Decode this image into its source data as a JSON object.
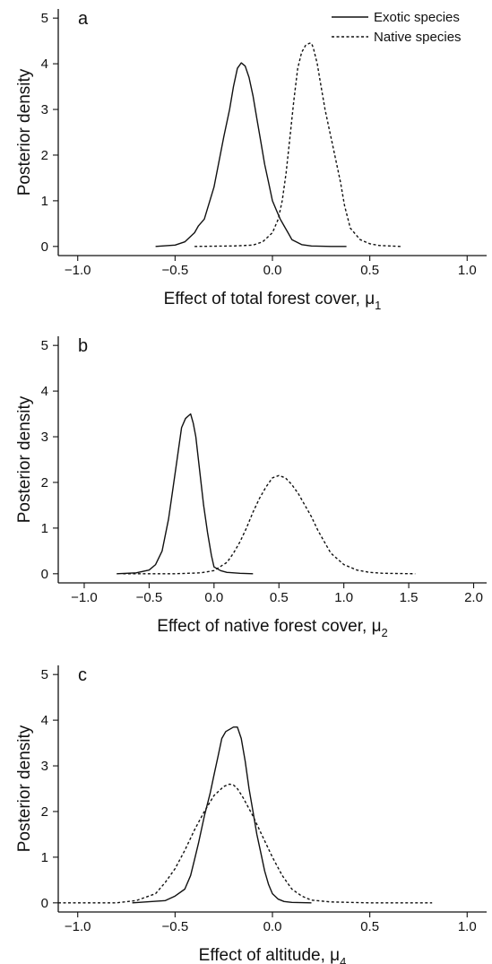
{
  "legend": [
    {
      "name": "Exotic species",
      "dash": "solid"
    },
    {
      "name": "Native species",
      "dash": "dashed"
    }
  ],
  "chart_data": [
    {
      "type": "line",
      "panel_label": "a",
      "xlabel": "Effect of total forest cover, μ",
      "xlabel_sub": "1",
      "ylabel": "Posterior density",
      "xlim": [
        -1.1,
        1.1
      ],
      "ylim": [
        -0.2,
        5.2
      ],
      "xticks": [
        -1.0,
        -0.5,
        0.0,
        0.5,
        1.0
      ],
      "xtick_labels": [
        "−1.0",
        "−0.5",
        "0.0",
        "0.5",
        "1.0"
      ],
      "yticks": [
        0,
        1,
        2,
        3,
        4,
        5
      ],
      "ytick_labels": [
        "0",
        "1",
        "2",
        "3",
        "4",
        "5"
      ],
      "legend_position": "top-right",
      "series": [
        {
          "name": "Exotic species",
          "dash": "solid",
          "x": [
            -0.6,
            -0.5,
            -0.45,
            -0.4,
            -0.38,
            -0.35,
            -0.3,
            -0.25,
            -0.22,
            -0.2,
            -0.18,
            -0.16,
            -0.14,
            -0.12,
            -0.1,
            -0.08,
            -0.06,
            -0.04,
            -0.02,
            0.0,
            0.02,
            0.04,
            0.06,
            0.08,
            0.1,
            0.15,
            0.2,
            0.3,
            0.38
          ],
          "y": [
            0.0,
            0.03,
            0.1,
            0.3,
            0.45,
            0.6,
            1.3,
            2.4,
            3.0,
            3.5,
            3.9,
            4.02,
            3.95,
            3.7,
            3.3,
            2.8,
            2.3,
            1.8,
            1.4,
            1.0,
            0.8,
            0.6,
            0.45,
            0.3,
            0.15,
            0.04,
            0.01,
            0.0,
            0.0
          ]
        },
        {
          "name": "Native species",
          "dash": "dashed",
          "x": [
            -0.4,
            -0.2,
            -0.1,
            -0.05,
            0.0,
            0.03,
            0.05,
            0.07,
            0.09,
            0.11,
            0.13,
            0.15,
            0.17,
            0.19,
            0.2,
            0.21,
            0.23,
            0.25,
            0.27,
            0.29,
            0.31,
            0.33,
            0.35,
            0.37,
            0.4,
            0.45,
            0.5,
            0.55,
            0.66
          ],
          "y": [
            0.0,
            0.01,
            0.03,
            0.1,
            0.3,
            0.6,
            1.0,
            1.6,
            2.4,
            3.2,
            3.9,
            4.25,
            4.4,
            4.45,
            4.45,
            4.35,
            4.0,
            3.5,
            3.0,
            2.6,
            2.2,
            1.8,
            1.4,
            0.9,
            0.4,
            0.15,
            0.06,
            0.02,
            0.0
          ]
        }
      ]
    },
    {
      "type": "line",
      "panel_label": "b",
      "xlabel": "Effect of native forest cover, μ",
      "xlabel_sub": "2",
      "ylabel": "Posterior density",
      "xlim": [
        -1.2,
        2.1
      ],
      "ylim": [
        -0.2,
        5.2
      ],
      "xticks": [
        -1.0,
        -0.5,
        0.0,
        0.5,
        1.0,
        1.5,
        2.0
      ],
      "xtick_labels": [
        "−1.0",
        "−0.5",
        "0.0",
        "0.5",
        "1.0",
        "1.5",
        "2.0"
      ],
      "yticks": [
        0,
        1,
        2,
        3,
        4,
        5
      ],
      "ytick_labels": [
        "0",
        "1",
        "2",
        "3",
        "4",
        "5"
      ],
      "series": [
        {
          "name": "Exotic species",
          "dash": "solid",
          "x": [
            -0.75,
            -0.6,
            -0.5,
            -0.45,
            -0.4,
            -0.35,
            -0.32,
            -0.28,
            -0.25,
            -0.22,
            -0.2,
            -0.18,
            -0.16,
            -0.14,
            -0.12,
            -0.1,
            -0.08,
            -0.05,
            -0.02,
            0.0,
            0.05,
            0.1,
            0.2,
            0.3
          ],
          "y": [
            0.0,
            0.02,
            0.08,
            0.2,
            0.5,
            1.2,
            1.8,
            2.6,
            3.2,
            3.4,
            3.45,
            3.5,
            3.3,
            3.0,
            2.5,
            2.0,
            1.5,
            0.9,
            0.4,
            0.15,
            0.07,
            0.03,
            0.01,
            0.0
          ]
        },
        {
          "name": "Native species",
          "dash": "dashed",
          "x": [
            -0.7,
            -0.3,
            -0.1,
            0.0,
            0.1,
            0.15,
            0.2,
            0.25,
            0.3,
            0.35,
            0.4,
            0.45,
            0.5,
            0.55,
            0.6,
            0.65,
            0.7,
            0.75,
            0.8,
            0.85,
            0.9,
            1.0,
            1.1,
            1.2,
            1.3,
            1.55
          ],
          "y": [
            0.0,
            0.0,
            0.02,
            0.07,
            0.25,
            0.45,
            0.7,
            1.0,
            1.35,
            1.65,
            1.9,
            2.1,
            2.15,
            2.1,
            1.95,
            1.75,
            1.5,
            1.25,
            0.95,
            0.7,
            0.45,
            0.2,
            0.08,
            0.03,
            0.01,
            0.0
          ]
        }
      ]
    },
    {
      "type": "line",
      "panel_label": "c",
      "xlabel": "Effect of altitude, μ",
      "xlabel_sub": "4",
      "ylabel": "Posterior density",
      "xlim": [
        -1.1,
        1.1
      ],
      "ylim": [
        -0.2,
        5.2
      ],
      "xticks": [
        -1.0,
        -0.5,
        0.0,
        0.5,
        1.0
      ],
      "xtick_labels": [
        "−1.0",
        "−0.5",
        "0.0",
        "0.5",
        "1.0"
      ],
      "yticks": [
        0,
        1,
        2,
        3,
        4,
        5
      ],
      "ytick_labels": [
        "0",
        "1",
        "2",
        "3",
        "4",
        "5"
      ],
      "series": [
        {
          "name": "Exotic species",
          "dash": "solid",
          "x": [
            -0.72,
            -0.55,
            -0.5,
            -0.45,
            -0.42,
            -0.4,
            -0.38,
            -0.35,
            -0.32,
            -0.3,
            -0.28,
            -0.26,
            -0.24,
            -0.22,
            -0.2,
            -0.18,
            -0.16,
            -0.14,
            -0.12,
            -0.1,
            -0.08,
            -0.06,
            -0.04,
            -0.02,
            0.0,
            0.03,
            0.06,
            0.1,
            0.2
          ],
          "y": [
            0.0,
            0.05,
            0.15,
            0.3,
            0.6,
            0.95,
            1.3,
            1.9,
            2.4,
            2.8,
            3.2,
            3.6,
            3.75,
            3.8,
            3.85,
            3.85,
            3.6,
            3.1,
            2.5,
            2.0,
            1.5,
            1.1,
            0.7,
            0.4,
            0.2,
            0.08,
            0.03,
            0.01,
            0.0
          ]
        },
        {
          "name": "Native species",
          "dash": "dashed",
          "x": [
            -1.1,
            -0.8,
            -0.7,
            -0.6,
            -0.55,
            -0.5,
            -0.45,
            -0.4,
            -0.35,
            -0.3,
            -0.25,
            -0.22,
            -0.2,
            -0.18,
            -0.15,
            -0.1,
            -0.05,
            0.0,
            0.05,
            0.1,
            0.15,
            0.2,
            0.3,
            0.5,
            0.82
          ],
          "y": [
            0.0,
            0.0,
            0.05,
            0.2,
            0.45,
            0.75,
            1.15,
            1.6,
            2.0,
            2.35,
            2.55,
            2.6,
            2.58,
            2.5,
            2.3,
            1.9,
            1.45,
            1.0,
            0.6,
            0.3,
            0.15,
            0.06,
            0.02,
            0.0,
            0.0
          ]
        }
      ]
    }
  ]
}
